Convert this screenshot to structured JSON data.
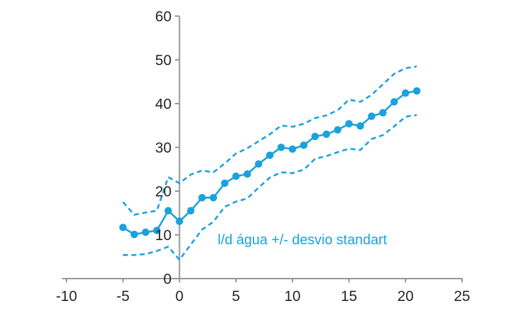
{
  "chart_data": {
    "type": "line",
    "title": "",
    "xlabel": "",
    "ylabel": "",
    "annotation": "l/d água +/- desvio standart",
    "xlim": [
      -10,
      25
    ],
    "ylim": [
      0,
      60
    ],
    "x_ticks": [
      -10,
      -5,
      0,
      5,
      10,
      15,
      20,
      25
    ],
    "y_ticks": [
      0,
      10,
      20,
      30,
      40,
      50,
      60
    ],
    "grid": false,
    "legend": "none",
    "x": [
      -5,
      -4,
      -3,
      -2,
      -1,
      0,
      1,
      2,
      3,
      4,
      5,
      6,
      7,
      8,
      9,
      10,
      11,
      12,
      13,
      14,
      15,
      16,
      17,
      18,
      19,
      20,
      21
    ],
    "series": [
      {
        "id": "mean",
        "style": "solid",
        "markers": true,
        "values": [
          11.7,
          10.1,
          10.6,
          11.0,
          15.5,
          13.1,
          15.5,
          18.5,
          18.5,
          21.8,
          23.4,
          23.9,
          26.2,
          28.2,
          30.0,
          29.6,
          30.5,
          32.5,
          33.0,
          34.0,
          35.4,
          34.9,
          37.1,
          37.9,
          40.4,
          42.4,
          42.9
        ]
      },
      {
        "id": "upper-sd",
        "style": "dashed",
        "markers": false,
        "values": [
          17.5,
          14.6,
          15.1,
          15.5,
          23.2,
          21.8,
          23.8,
          24.7,
          24.3,
          26.3,
          28.6,
          29.8,
          31.4,
          33.0,
          35.0,
          34.7,
          35.4,
          36.7,
          37.3,
          38.5,
          40.9,
          40.4,
          42.0,
          44.4,
          46.8,
          48.1,
          48.5
        ]
      },
      {
        "id": "lower-sd",
        "style": "dashed",
        "markers": false,
        "values": [
          5.4,
          5.4,
          5.6,
          6.3,
          7.3,
          4.3,
          7.8,
          11.2,
          13.0,
          16.4,
          17.6,
          18.3,
          20.8,
          23.1,
          24.3,
          24.1,
          24.9,
          27.4,
          28.0,
          28.9,
          29.7,
          29.4,
          31.9,
          32.8,
          34.8,
          37.0,
          37.4
        ]
      }
    ],
    "colors": {
      "series": "#1AA2DE",
      "axis": "#969696",
      "tick_label": "#262626"
    }
  }
}
